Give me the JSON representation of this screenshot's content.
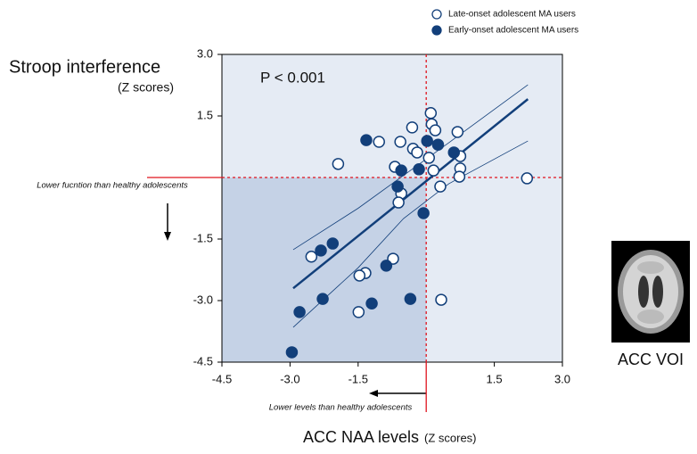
{
  "chart_data": {
    "type": "scatter",
    "annotation": "P < 0.001",
    "y_label": "Stroop interference",
    "y_label_unit": "(Z scores)",
    "x_label": "ACC NAA levels",
    "x_label_unit": "(Z scores)",
    "y_note": "Lower fucntion than healthy adolescents",
    "x_note": "Lower levels than healthy adolescents",
    "image_label": "ACC VOI",
    "xlim": [
      -4.5,
      3.0
    ],
    "ylim": [
      -4.5,
      3.0
    ],
    "xticks": [
      -4.5,
      {
        "value": -3.0,
        "label": "-3.0"
      },
      -1.5,
      1.5,
      {
        "value": 3.0,
        "label": "3.0"
      }
    ],
    "yticks": [
      {
        "value": 3.0,
        "label": "3.0"
      },
      1.5,
      -1.5,
      {
        "value": -3.0,
        "label": "-3.0"
      },
      -4.5
    ],
    "reference_x": 0,
    "reference_y": 0,
    "series": [
      {
        "name": "Late-onset adolescent MA users",
        "color": "#123f7a",
        "marker": "open",
        "x": [
          -1.94,
          -1.04,
          -0.57,
          -0.31,
          -0.29,
          -0.2,
          -0.69,
          -0.55,
          -0.61,
          0.1,
          0.12,
          0.2,
          0.06,
          0.16,
          0.31,
          0.69,
          0.75,
          0.75,
          0.73,
          2.22,
          -2.53,
          -1.34,
          -1.47,
          -0.73,
          -1.49,
          0.33
        ],
        "y": [
          0.33,
          0.87,
          0.87,
          1.22,
          0.7,
          0.61,
          0.26,
          -0.39,
          -0.61,
          1.57,
          1.3,
          1.15,
          0.48,
          0.17,
          -0.22,
          1.11,
          0.52,
          0.22,
          0.02,
          -0.02,
          -1.93,
          -2.33,
          -2.39,
          -1.98,
          -3.28,
          -2.98
        ]
      },
      {
        "name": "Early-onset adolescent MA users",
        "color": "#123f7a",
        "marker": "filled",
        "x": [
          -1.32,
          -0.55,
          -0.16,
          0.02,
          0.26,
          0.61,
          -0.63,
          -0.06,
          -2.06,
          -2.32,
          -0.88,
          -2.28,
          -1.2,
          -0.35,
          -2.79,
          -2.96
        ],
        "y": [
          0.91,
          0.17,
          0.2,
          0.89,
          0.8,
          0.61,
          -0.22,
          -0.87,
          -1.61,
          -1.78,
          -2.15,
          -2.96,
          -3.07,
          -2.96,
          -3.28,
          -4.26
        ]
      }
    ],
    "fit_line": {
      "x": [
        -2.93,
        2.24
      ],
      "y": [
        -2.7,
        1.91
      ]
    },
    "ci_upper": {
      "x": [
        -2.93,
        -1.5,
        -0.5,
        0.5,
        2.24
      ],
      "y": [
        -1.76,
        -0.75,
        0.05,
        0.85,
        2.26
      ]
    },
    "ci_lower": {
      "x": [
        -2.93,
        -1.5,
        -0.5,
        0.5,
        2.24
      ],
      "y": [
        -3.65,
        -2.2,
        -1.0,
        -0.15,
        0.89
      ]
    }
  }
}
